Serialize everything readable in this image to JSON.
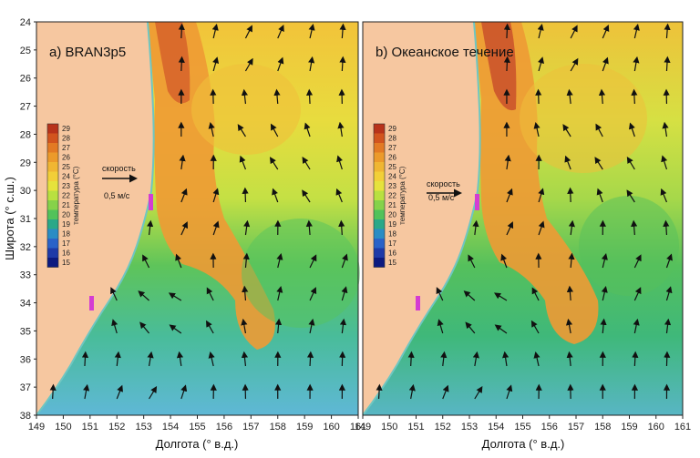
{
  "panels": [
    {
      "title": "a) BRAN3p5"
    },
    {
      "title": "b) Океанское течение"
    }
  ],
  "x_axis": {
    "label": "Долгота (° в.д.)",
    "ticks_left": [
      "149",
      "150",
      "151",
      "152",
      "153",
      "154",
      "155",
      "156",
      "157",
      "158",
      "159",
      "160",
      "161"
    ],
    "ticks_right": [
      "149",
      "150",
      "151",
      "152",
      "153",
      "154",
      "155",
      "156",
      "157",
      "158",
      "159",
      "160",
      "161"
    ]
  },
  "y_axis": {
    "label": "Широта (° с.ш.)",
    "ticks": [
      "24",
      "25",
      "26",
      "27",
      "28",
      "29",
      "30",
      "31",
      "32",
      "33",
      "34",
      "35",
      "36",
      "37",
      "38"
    ]
  },
  "colorbar": {
    "label": "температура (°C)",
    "ticks": [
      "29",
      "28",
      "27",
      "26",
      "25",
      "24",
      "23",
      "22",
      "21",
      "20",
      "19",
      "18",
      "17",
      "16",
      "15"
    ],
    "colors": [
      "#b8331a",
      "#d2541e",
      "#e37a24",
      "#ec9a2a",
      "#f0b632",
      "#f2cf38",
      "#e6e23c",
      "#b9e040",
      "#86d24a",
      "#52c25a",
      "#2aa888",
      "#2a8cc4",
      "#2a62c8",
      "#1e3aa8",
      "#0c1a80"
    ]
  },
  "scale_arrow": {
    "label": "скорость",
    "value": "0,5 м/с"
  },
  "colors": {
    "land": "#f6c7a0",
    "coast_line": "#6ec6c2",
    "eddy_pink": "#d43cd2"
  }
}
